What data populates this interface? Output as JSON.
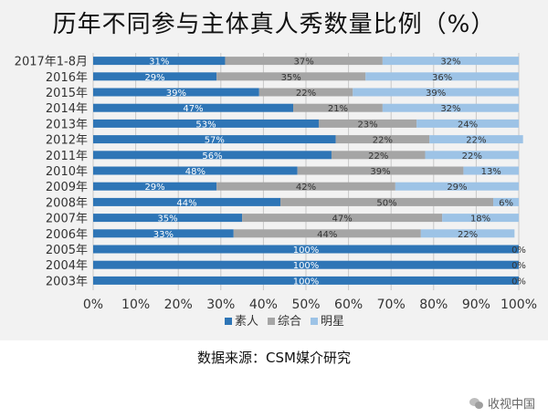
{
  "source_note": "数据来源：CSM媒介研究",
  "watermark_text": "收视中国",
  "chart_data": {
    "type": "bar",
    "orientation": "horizontal",
    "stacked": "percent",
    "title": "历年不同参与主体真人秀数量比例（%）",
    "categories": [
      "2017年1-8月",
      "2016年",
      "2015年",
      "2014年",
      "2013年",
      "2012年",
      "2011年",
      "2010年",
      "2009年",
      "2008年",
      "2007年",
      "2006年",
      "2005年",
      "2004年",
      "2003年"
    ],
    "series": [
      {
        "name": "素人",
        "color": "#2e75b6",
        "values": [
          31,
          29,
          39,
          47,
          53,
          57,
          56,
          48,
          29,
          44,
          35,
          33,
          100,
          100,
          100
        ]
      },
      {
        "name": "综合",
        "color": "#a5a5a5",
        "values": [
          37,
          35,
          22,
          21,
          23,
          22,
          22,
          39,
          42,
          50,
          47,
          44,
          0,
          0,
          0
        ]
      },
      {
        "name": "明星",
        "color": "#9dc3e6",
        "values": [
          32,
          36,
          39,
          32,
          24,
          22,
          22,
          13,
          29,
          6,
          18,
          22,
          0,
          0,
          0
        ]
      }
    ],
    "xlim": [
      0,
      100
    ],
    "xticks": [
      "0%",
      "10%",
      "20%",
      "30%",
      "40%",
      "50%",
      "60%",
      "70%",
      "80%",
      "90%",
      "100%"
    ],
    "grid": true,
    "legend_position": "bottom"
  }
}
